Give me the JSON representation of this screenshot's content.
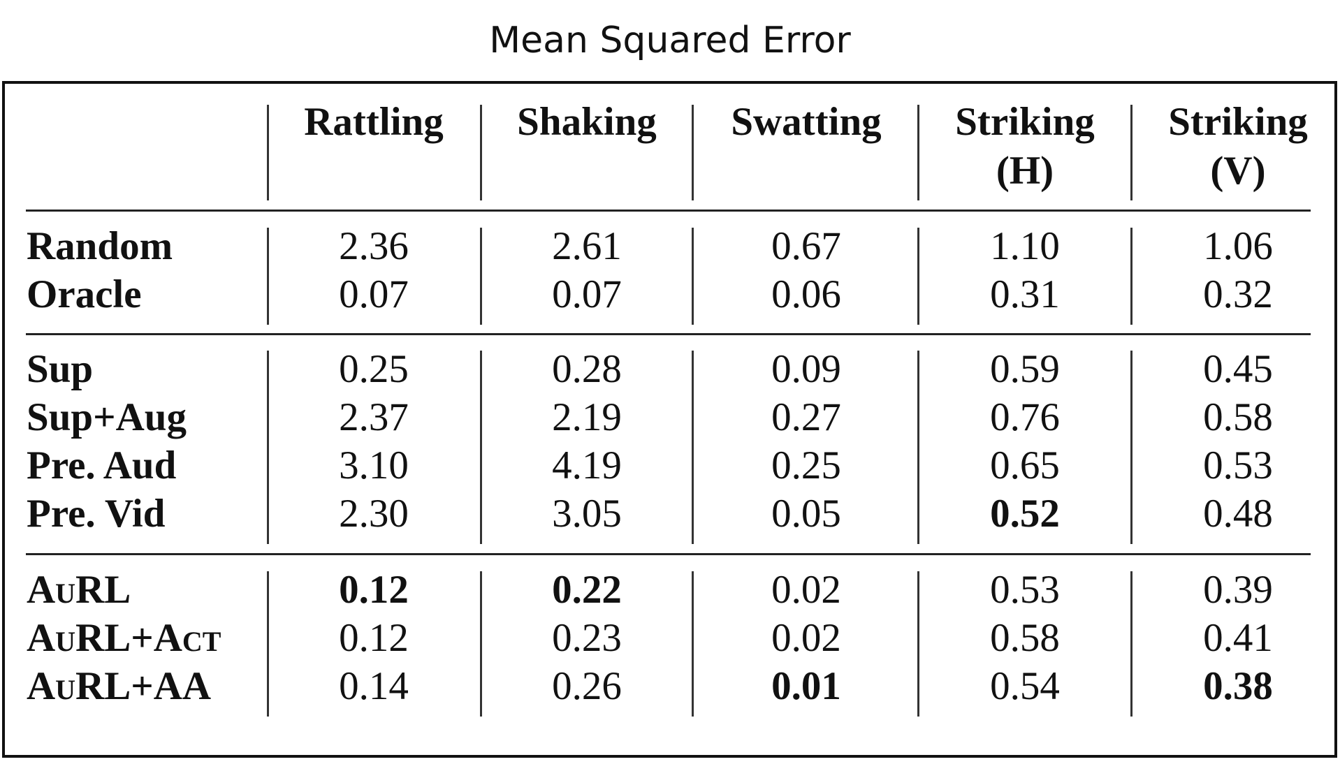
{
  "chart_data": {
    "type": "table",
    "title": "Mean Squared Error",
    "columns": [
      "Rattling",
      "Shaking",
      "Swatting",
      "Striking (H)",
      "Striking (V)"
    ],
    "column_lines": [
      [
        "Rattling"
      ],
      [
        "Shaking"
      ],
      [
        "Swatting"
      ],
      [
        "Striking",
        "(H)"
      ],
      [
        "Striking",
        "(V)"
      ]
    ],
    "groups": [
      {
        "rows": [
          {
            "label": "Random",
            "values": [
              "2.36",
              "2.61",
              "0.67",
              "1.10",
              "1.06"
            ],
            "bold": [
              false,
              false,
              false,
              false,
              false
            ]
          },
          {
            "label": "Oracle",
            "values": [
              "0.07",
              "0.07",
              "0.06",
              "0.31",
              "0.32"
            ],
            "bold": [
              false,
              false,
              false,
              false,
              false
            ]
          }
        ]
      },
      {
        "rows": [
          {
            "label": "Sup",
            "values": [
              "0.25",
              "0.28",
              "0.09",
              "0.59",
              "0.45"
            ],
            "bold": [
              false,
              false,
              false,
              false,
              false
            ]
          },
          {
            "label": "Sup+Aug",
            "values": [
              "2.37",
              "2.19",
              "0.27",
              "0.76",
              "0.58"
            ],
            "bold": [
              false,
              false,
              false,
              false,
              false
            ]
          },
          {
            "label": "Pre. Aud",
            "values": [
              "3.10",
              "4.19",
              "0.25",
              "0.65",
              "0.53"
            ],
            "bold": [
              false,
              false,
              false,
              false,
              false
            ]
          },
          {
            "label": "Pre. Vid",
            "values": [
              "2.30",
              "3.05",
              "0.05",
              "0.52",
              "0.48"
            ],
            "bold": [
              false,
              false,
              false,
              true,
              false
            ]
          }
        ]
      },
      {
        "rows": [
          {
            "label": "AuRL",
            "values": [
              "0.12",
              "0.22",
              "0.02",
              "0.53",
              "0.39"
            ],
            "bold": [
              true,
              true,
              false,
              false,
              false
            ]
          },
          {
            "label": "AuRL+Act",
            "values": [
              "0.12",
              "0.23",
              "0.02",
              "0.58",
              "0.41"
            ],
            "bold": [
              false,
              false,
              false,
              false,
              false
            ]
          },
          {
            "label": "AuRL+AA",
            "values": [
              "0.14",
              "0.26",
              "0.01",
              "0.54",
              "0.38"
            ],
            "bold": [
              false,
              false,
              true,
              false,
              true
            ]
          }
        ]
      }
    ]
  }
}
